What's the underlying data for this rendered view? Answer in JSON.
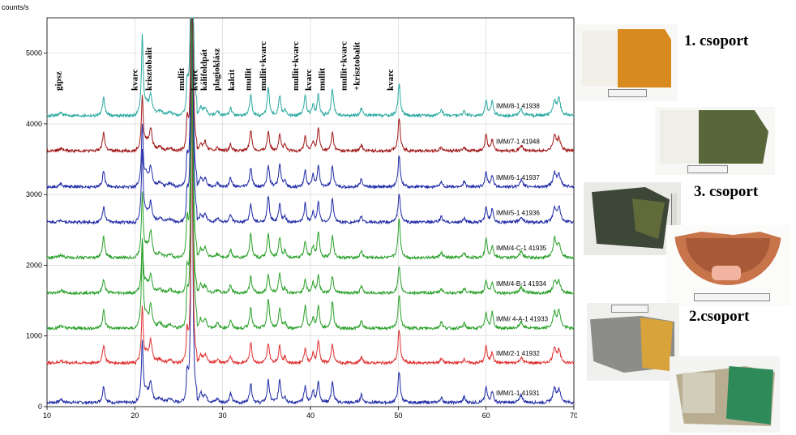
{
  "chart_data": {
    "type": "line",
    "ylabel": "counts/s",
    "xlim": [
      10,
      70
    ],
    "ylim": [
      0,
      5500
    ],
    "x_ticks": [
      10,
      20,
      30,
      40,
      50,
      60,
      70
    ],
    "y_ticks": [
      0,
      1000,
      2000,
      3000,
      4000,
      5000
    ],
    "grid": true,
    "peaks": [
      {
        "pos": 11.6,
        "h": 40,
        "w": 0.2
      },
      {
        "pos": 16.45,
        "h": 260,
        "w": 0.15
      },
      {
        "pos": 20.85,
        "h": 950,
        "w": 0.12
      },
      {
        "pos": 21.3,
        "h": 120,
        "w": 0.25
      },
      {
        "pos": 21.8,
        "h": 320,
        "w": 0.2
      },
      {
        "pos": 22.9,
        "h": 60,
        "w": 0.3
      },
      {
        "pos": 24.0,
        "h": 50,
        "w": 0.3
      },
      {
        "pos": 25.95,
        "h": 400,
        "w": 0.15
      },
      {
        "pos": 26.5,
        "h": 5500,
        "w": 0.1
      },
      {
        "pos": 27.5,
        "h": 120,
        "w": 0.2
      },
      {
        "pos": 28.0,
        "h": 120,
        "w": 0.2
      },
      {
        "pos": 29.4,
        "h": 60,
        "w": 0.2
      },
      {
        "pos": 30.9,
        "h": 120,
        "w": 0.15
      },
      {
        "pos": 33.2,
        "h": 300,
        "w": 0.15
      },
      {
        "pos": 35.2,
        "h": 350,
        "w": 0.15
      },
      {
        "pos": 36.5,
        "h": 300,
        "w": 0.15
      },
      {
        "pos": 37.1,
        "h": 80,
        "w": 0.15
      },
      {
        "pos": 39.4,
        "h": 260,
        "w": 0.15
      },
      {
        "pos": 40.3,
        "h": 150,
        "w": 0.15
      },
      {
        "pos": 40.9,
        "h": 320,
        "w": 0.15
      },
      {
        "pos": 42.5,
        "h": 320,
        "w": 0.15
      },
      {
        "pos": 45.8,
        "h": 100,
        "w": 0.15
      },
      {
        "pos": 50.1,
        "h": 480,
        "w": 0.15
      },
      {
        "pos": 54.9,
        "h": 80,
        "w": 0.15
      },
      {
        "pos": 57.5,
        "h": 70,
        "w": 0.15
      },
      {
        "pos": 60.0,
        "h": 230,
        "w": 0.15
      },
      {
        "pos": 60.7,
        "h": 180,
        "w": 0.15
      },
      {
        "pos": 64.0,
        "h": 90,
        "w": 0.2
      },
      {
        "pos": 67.8,
        "h": 220,
        "w": 0.2
      },
      {
        "pos": 68.3,
        "h": 200,
        "w": 0.2
      }
    ],
    "series": [
      {
        "name": "IMM/1-1 41931",
        "offset": 0,
        "color": "#1f2aa5"
      },
      {
        "name": "IMM/2-1 41932",
        "offset": 560,
        "color": "#e03030"
      },
      {
        "name": "IMM/ 4-A-1 41933",
        "offset": 1050,
        "color": "#2aa02a"
      },
      {
        "name": "IMM/4-B-1 41934",
        "offset": 1550,
        "color": "#2aa02a"
      },
      {
        "name": "IMM/4-C-1 41935",
        "offset": 2050,
        "color": "#2aa02a"
      },
      {
        "name": "IMM/5-1 41936",
        "offset": 2550,
        "color": "#1f2aa5"
      },
      {
        "name": "IMM/6-1 41937",
        "offset": 3050,
        "color": "#1f2aa5"
      },
      {
        "name": "IMM/7-1 41948",
        "offset": 3560,
        "color": "#a01818"
      },
      {
        "name": "IMM/8-1 41938",
        "offset": 4060,
        "color": "#2aa8a0"
      }
    ],
    "annotations": [
      {
        "text": "gipsz",
        "x": 11.6
      },
      {
        "text": "kvarc",
        "x": 20.3
      },
      {
        "text": "krisztobalit",
        "x": 21.9
      },
      {
        "text": "mullit",
        "x": 25.6
      },
      {
        "text": "kvarc",
        "x": 27.1
      },
      {
        "text": "kálifoldpát",
        "x": 28.2
      },
      {
        "text": "plagioklász",
        "x": 29.6
      },
      {
        "text": "kalcit",
        "x": 31.3
      },
      {
        "text": "mullit",
        "x": 33.2
      },
      {
        "text": "mullit+kvarc",
        "x": 34.9
      },
      {
        "text": "mullit+kvarc",
        "x": 38.6
      },
      {
        "text": "kvarc",
        "x": 40.1
      },
      {
        "text": "mullit",
        "x": 41.6
      },
      {
        "text": "mullit+kvarc",
        "x": 44.1
      },
      {
        "text": "+krisztobalit",
        "x": 45.6
      },
      {
        "text": "kvarc",
        "x": 49.4
      }
    ]
  },
  "groups": [
    {
      "label": "1. csoport"
    },
    {
      "label": "3. csoport"
    },
    {
      "label": "2.csoport"
    }
  ],
  "photos": [
    {
      "name": "orange-glazed-tile",
      "glaze": "#d98a1e",
      "body": "#f1efe8"
    },
    {
      "name": "green-glazed-tile",
      "glaze": "#58673a",
      "body": "#efeee9"
    },
    {
      "name": "dark-glazed-shard",
      "glaze": "#3d4737",
      "body": "#555a52"
    },
    {
      "name": "bowl-fragment",
      "glaze": "#c8744a",
      "body": "#e8b99b"
    },
    {
      "name": "grey-yellow-shard",
      "glaze": "#d8a33a",
      "body": "#8c8c88"
    },
    {
      "name": "green-white-shard",
      "glaze": "#2f8a5a",
      "body": "#b8ad90"
    }
  ]
}
